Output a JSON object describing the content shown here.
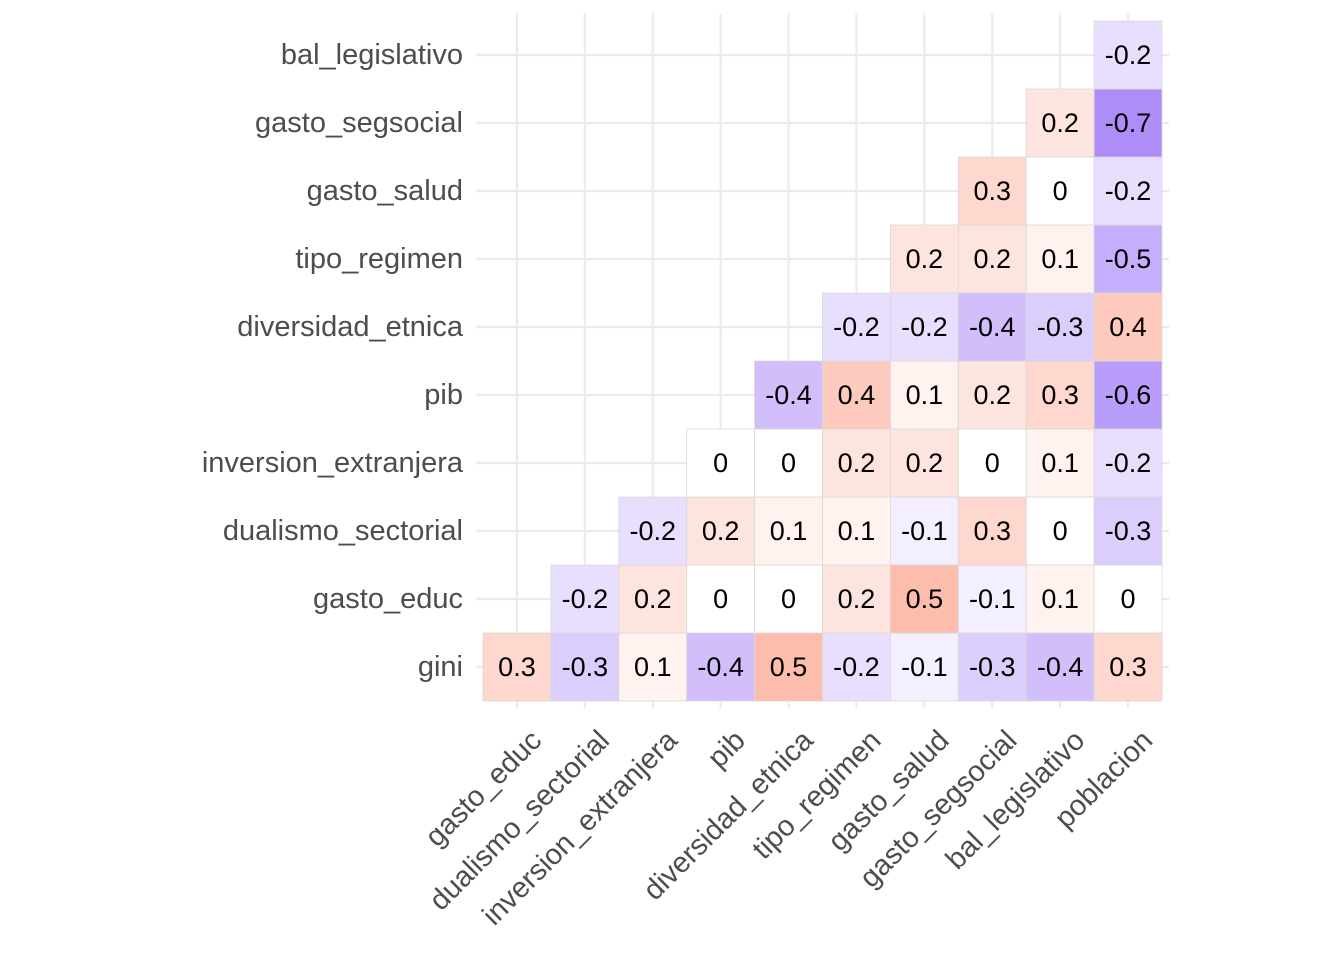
{
  "chart_data": {
    "type": "heatmap",
    "title": "",
    "xlabel": "",
    "ylabel": "",
    "legend": "none",
    "grid": true,
    "x_categories": [
      "gasto_educ",
      "dualismo_sectorial",
      "inversion_extranjera",
      "pib",
      "diversidad_etnica",
      "tipo_regimen",
      "gasto_salud",
      "gasto_segsocial",
      "bal_legislativo",
      "poblacion"
    ],
    "y_categories": [
      "gini",
      "gasto_educ",
      "dualismo_sectorial",
      "inversion_extranjera",
      "pib",
      "diversidad_etnica",
      "tipo_regimen",
      "gasto_salud",
      "gasto_segsocial",
      "bal_legislativo"
    ],
    "color_scale": {
      "low": "#8b5cf6",
      "mid": "#ffffff",
      "high": "#fa7a5a",
      "limits": [
        -1,
        1
      ]
    },
    "cells": [
      {
        "x": "gasto_educ",
        "y": "gini",
        "value": 0.3
      },
      {
        "x": "dualismo_sectorial",
        "y": "gini",
        "value": -0.3
      },
      {
        "x": "inversion_extranjera",
        "y": "gini",
        "value": 0.1
      },
      {
        "x": "pib",
        "y": "gini",
        "value": -0.4
      },
      {
        "x": "diversidad_etnica",
        "y": "gini",
        "value": 0.5
      },
      {
        "x": "tipo_regimen",
        "y": "gini",
        "value": -0.2
      },
      {
        "x": "gasto_salud",
        "y": "gini",
        "value": -0.1
      },
      {
        "x": "gasto_segsocial",
        "y": "gini",
        "value": -0.3
      },
      {
        "x": "bal_legislativo",
        "y": "gini",
        "value": -0.4
      },
      {
        "x": "poblacion",
        "y": "gini",
        "value": 0.3
      },
      {
        "x": "dualismo_sectorial",
        "y": "gasto_educ",
        "value": -0.2
      },
      {
        "x": "inversion_extranjera",
        "y": "gasto_educ",
        "value": 0.2
      },
      {
        "x": "pib",
        "y": "gasto_educ",
        "value": 0
      },
      {
        "x": "diversidad_etnica",
        "y": "gasto_educ",
        "value": 0
      },
      {
        "x": "tipo_regimen",
        "y": "gasto_educ",
        "value": 0.2
      },
      {
        "x": "gasto_salud",
        "y": "gasto_educ",
        "value": 0.5
      },
      {
        "x": "gasto_segsocial",
        "y": "gasto_educ",
        "value": -0.1
      },
      {
        "x": "bal_legislativo",
        "y": "gasto_educ",
        "value": 0.1
      },
      {
        "x": "poblacion",
        "y": "gasto_educ",
        "value": 0
      },
      {
        "x": "inversion_extranjera",
        "y": "dualismo_sectorial",
        "value": -0.2
      },
      {
        "x": "pib",
        "y": "dualismo_sectorial",
        "value": 0.2
      },
      {
        "x": "diversidad_etnica",
        "y": "dualismo_sectorial",
        "value": 0.1
      },
      {
        "x": "tipo_regimen",
        "y": "dualismo_sectorial",
        "value": 0.1
      },
      {
        "x": "gasto_salud",
        "y": "dualismo_sectorial",
        "value": -0.1
      },
      {
        "x": "gasto_segsocial",
        "y": "dualismo_sectorial",
        "value": 0.3
      },
      {
        "x": "bal_legislativo",
        "y": "dualismo_sectorial",
        "value": 0
      },
      {
        "x": "poblacion",
        "y": "dualismo_sectorial",
        "value": -0.3
      },
      {
        "x": "pib",
        "y": "inversion_extranjera",
        "value": 0
      },
      {
        "x": "diversidad_etnica",
        "y": "inversion_extranjera",
        "value": 0
      },
      {
        "x": "tipo_regimen",
        "y": "inversion_extranjera",
        "value": 0.2
      },
      {
        "x": "gasto_salud",
        "y": "inversion_extranjera",
        "value": 0.2
      },
      {
        "x": "gasto_segsocial",
        "y": "inversion_extranjera",
        "value": 0
      },
      {
        "x": "bal_legislativo",
        "y": "inversion_extranjera",
        "value": 0.1
      },
      {
        "x": "poblacion",
        "y": "inversion_extranjera",
        "value": -0.2
      },
      {
        "x": "diversidad_etnica",
        "y": "pib",
        "value": -0.4
      },
      {
        "x": "tipo_regimen",
        "y": "pib",
        "value": 0.4
      },
      {
        "x": "gasto_salud",
        "y": "pib",
        "value": 0.1
      },
      {
        "x": "gasto_segsocial",
        "y": "pib",
        "value": 0.2
      },
      {
        "x": "bal_legislativo",
        "y": "pib",
        "value": 0.3
      },
      {
        "x": "poblacion",
        "y": "pib",
        "value": -0.6
      },
      {
        "x": "tipo_regimen",
        "y": "diversidad_etnica",
        "value": -0.2
      },
      {
        "x": "gasto_salud",
        "y": "diversidad_etnica",
        "value": -0.2
      },
      {
        "x": "gasto_segsocial",
        "y": "diversidad_etnica",
        "value": -0.4
      },
      {
        "x": "bal_legislativo",
        "y": "diversidad_etnica",
        "value": -0.3
      },
      {
        "x": "poblacion",
        "y": "diversidad_etnica",
        "value": 0.4
      },
      {
        "x": "gasto_salud",
        "y": "tipo_regimen",
        "value": 0.2
      },
      {
        "x": "gasto_segsocial",
        "y": "tipo_regimen",
        "value": 0.2
      },
      {
        "x": "bal_legislativo",
        "y": "tipo_regimen",
        "value": 0.1
      },
      {
        "x": "poblacion",
        "y": "tipo_regimen",
        "value": -0.5
      },
      {
        "x": "gasto_segsocial",
        "y": "gasto_salud",
        "value": 0.3
      },
      {
        "x": "bal_legislativo",
        "y": "gasto_salud",
        "value": 0
      },
      {
        "x": "poblacion",
        "y": "gasto_salud",
        "value": -0.2
      },
      {
        "x": "bal_legislativo",
        "y": "gasto_segsocial",
        "value": 0.2
      },
      {
        "x": "poblacion",
        "y": "gasto_segsocial",
        "value": -0.7
      },
      {
        "x": "poblacion",
        "y": "bal_legislativo",
        "value": -0.2
      }
    ]
  }
}
